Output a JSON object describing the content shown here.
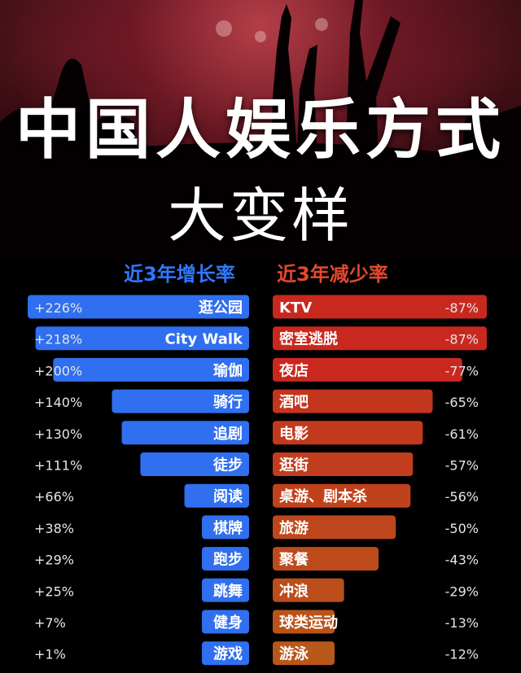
{
  "title_line1": "中国人娱乐方式",
  "title_line2": "大变样",
  "left_header": "近3年增长率",
  "right_header": "近3年减少率",
  "colors": {
    "blue": "#2f6ff0",
    "red": "#c9281f",
    "orange": "#b8571a",
    "left_header": "#2f78ff",
    "right_header": "#e4482e"
  },
  "chart_data": [
    {
      "type": "bar",
      "name": "近3年增长率",
      "categories": [
        "逛公园",
        "City Walk",
        "瑜伽",
        "骑行",
        "追剧",
        "徒步",
        "阅读",
        "棋牌",
        "跑步",
        "跳舞",
        "健身",
        "游戏"
      ],
      "values": [
        226,
        218,
        200,
        140,
        130,
        111,
        66,
        38,
        29,
        25,
        7,
        1
      ],
      "labels": [
        "+226%",
        "+218%",
        "+200%",
        "+140%",
        "+130%",
        "+111%",
        "+66%",
        "+38%",
        "+29%",
        "+25%",
        "+7%",
        "+1%"
      ]
    },
    {
      "type": "bar",
      "name": "近3年减少率",
      "categories": [
        "KTV",
        "密室逃脱",
        "夜店",
        "酒吧",
        "电影",
        "逛街",
        "桌游、剧本杀",
        "旅游",
        "聚餐",
        "冲浪",
        "球类运动",
        "游泳"
      ],
      "values": [
        -87,
        -87,
        -77,
        -65,
        -61,
        -57,
        -56,
        -50,
        -43,
        -29,
        -13,
        -12
      ],
      "labels": [
        "-87%",
        "-87%",
        "-77%",
        "-65%",
        "-61%",
        "-57%",
        "-56%",
        "-50%",
        "-43%",
        "-29%",
        "-13%",
        "-12%"
      ]
    }
  ]
}
